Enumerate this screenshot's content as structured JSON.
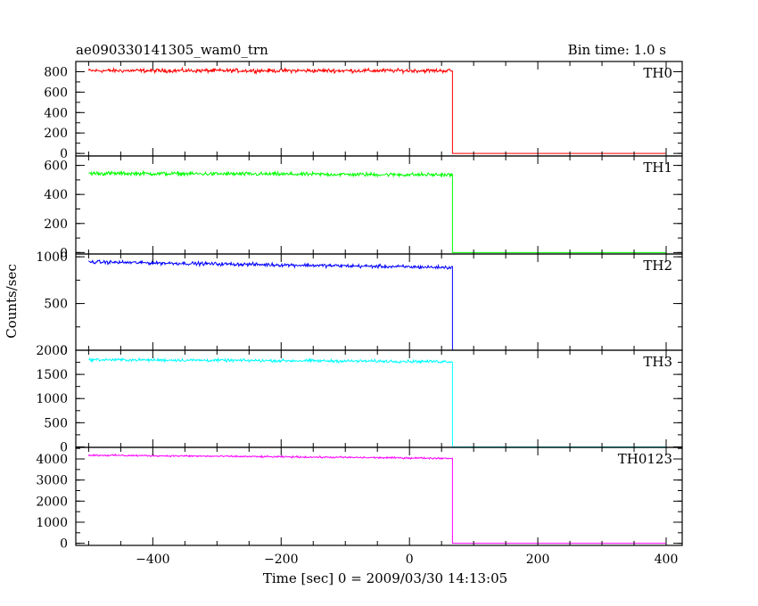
{
  "chart_data": {
    "type": "line",
    "title": "ae090330141305_wam0_trn",
    "bin_label": "Bin time: 1.0 s",
    "xlabel": "Time [sec] 0 = 2009/03/30 14:13:05",
    "ylabel": "Counts/sec",
    "xlim": [
      -520,
      425
    ],
    "x_ticks": [
      -400,
      -200,
      0,
      200,
      400
    ],
    "x_tick_labels": [
      "−400",
      "−200",
      "0",
      "200",
      "400"
    ],
    "data_start": -500,
    "drop_time": 67,
    "data_end": 400,
    "grid": false,
    "legend": "none",
    "panels": [
      {
        "name": "TH0",
        "color": "#ff0000",
        "ylim": [
          -25,
          900
        ],
        "y_ticks": [
          0,
          200,
          400,
          600,
          800
        ],
        "y_tick_labels": [
          "0",
          "200",
          "400",
          "600",
          "800"
        ],
        "level_start": 810,
        "level_end": 810,
        "noise": 28,
        "level_after": 0
      },
      {
        "name": "TH1",
        "color": "#00ff00",
        "ylim": [
          -10,
          665
        ],
        "y_ticks": [
          0,
          200,
          400,
          600
        ],
        "y_tick_labels": [
          "0",
          "200",
          "400",
          "600"
        ],
        "level_start": 545,
        "level_end": 535,
        "noise": 20,
        "level_after": 0
      },
      {
        "name": "TH2",
        "color": "#0000ff",
        "ylim": [
          0,
          1030
        ],
        "y_ticks": [
          0,
          500,
          1000
        ],
        "y_tick_labels": [
          "0",
          "500",
          "1000"
        ],
        "level_start": 945,
        "level_end": 885,
        "noise": 28,
        "level_after": 0
      },
      {
        "name": "TH3",
        "color": "#00ffff",
        "ylim": [
          -10,
          2000
        ],
        "y_ticks": [
          0,
          500,
          1000,
          1500,
          2000
        ],
        "y_tick_labels": [
          "0",
          "500",
          "1000",
          "1500",
          "2000"
        ],
        "level_start": 1805,
        "level_end": 1765,
        "noise": 45,
        "level_after": 0
      },
      {
        "name": "TH0123",
        "color": "#ff00ff",
        "ylim": [
          -100,
          4550
        ],
        "y_ticks": [
          0,
          1000,
          2000,
          3000,
          4000
        ],
        "y_tick_labels": [
          "0",
          "1000",
          "2000",
          "3000",
          "4000"
        ],
        "level_start": 4180,
        "level_end": 4030,
        "noise": 60,
        "level_after": 0
      }
    ]
  }
}
